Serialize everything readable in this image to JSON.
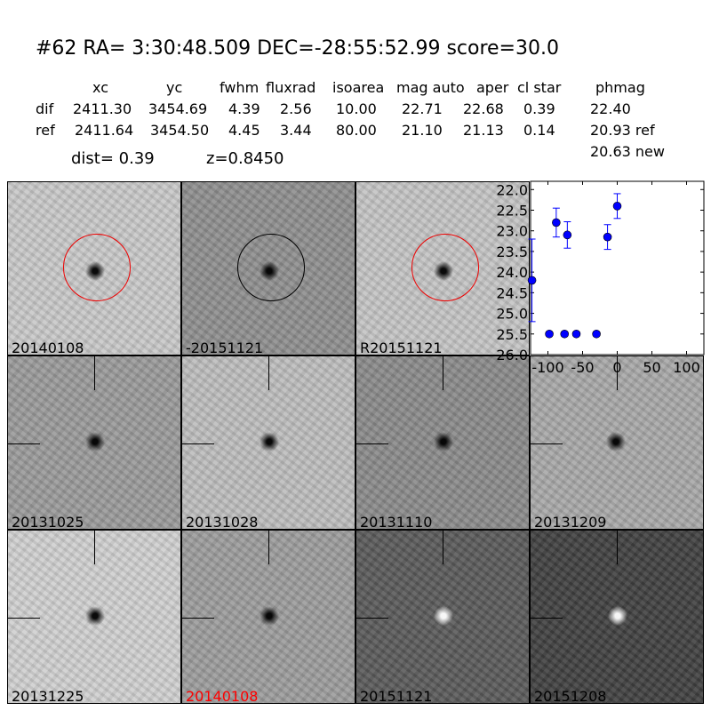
{
  "header": {
    "title": "#62   RA= 3:30:48.509 DEC=-28:55:52.99      score=30.0",
    "columns": [
      "xc",
      "yc",
      "fwhm",
      "fluxrad",
      "isoarea",
      "mag auto",
      "aper",
      "cl star",
      "phmag"
    ],
    "rows": [
      {
        "label": "dif",
        "values": [
          "2411.30",
          "3454.69",
          "4.39",
          "2.56",
          "10.00",
          "22.71",
          "22.68",
          "0.39",
          "22.40"
        ]
      },
      {
        "label": "ref",
        "values": [
          "2411.64",
          "3454.50",
          "4.45",
          "3.44",
          "80.00",
          "21.10",
          "21.13",
          "0.14",
          "20.93 ref"
        ]
      }
    ],
    "extra_phmag": "20.63 new",
    "dist": "dist=  0.39",
    "z": "z=0.8450"
  },
  "panels": [
    {
      "label": "20140108",
      "bg": "#c8c8c8",
      "spot": "dark",
      "circle": "red"
    },
    {
      "label": "-20151121",
      "bg": "#8e8e8e",
      "spot": "dark",
      "circle": "black"
    },
    {
      "label": "R20151121",
      "bg": "#c4c4c4",
      "spot": "dark",
      "circle": "red"
    },
    null,
    {
      "label": "20131025",
      "bg": "#9a9a9a",
      "spot": "dark",
      "cross": true
    },
    {
      "label": "20131028",
      "bg": "#bdbdbd",
      "spot": "dark",
      "cross": true
    },
    {
      "label": "20131110",
      "bg": "#8a8a8a",
      "spot": "dark",
      "cross": true
    },
    {
      "label": "20131209",
      "bg": "#a8a8a8",
      "spot": "dark",
      "cross": true
    },
    {
      "label": "20131225",
      "bg": "#d0d0d0",
      "spot": "dark",
      "cross": true
    },
    {
      "label": "20140108",
      "bg": "#9c9c9c",
      "spot": "dark",
      "cross": true,
      "label_color": "#ff0000"
    },
    {
      "label": "20151121",
      "bg": "#5a5a5a",
      "spot": "light",
      "cross": true
    },
    {
      "label": "20151208",
      "bg": "#404040",
      "spot": "light",
      "cross": true
    }
  ],
  "chart_data": {
    "type": "scatter",
    "xlim": [
      -125,
      125
    ],
    "ylim": [
      26.0,
      21.8
    ],
    "y_inverted": true,
    "xticks": [
      "-100",
      "-50",
      "0",
      "50",
      "100"
    ],
    "xtick_values": [
      -100,
      -50,
      0,
      50,
      100
    ],
    "yticks": [
      "22.0",
      "22.5",
      "23.0",
      "23.5",
      "24.0",
      "24.5",
      "25.0",
      "25.5",
      "26.0"
    ],
    "ytick_values": [
      22,
      22.5,
      23,
      23.5,
      24,
      24.5,
      25,
      25.5,
      26
    ],
    "color": "#0000ff",
    "points": [
      {
        "x": -123,
        "y": 24.2,
        "err": 1.0
      },
      {
        "x": -98,
        "y": 25.5,
        "err": 0.05
      },
      {
        "x": -88,
        "y": 22.8,
        "err": 0.35
      },
      {
        "x": -76,
        "y": 25.5,
        "err": 0.05
      },
      {
        "x": -72,
        "y": 23.1,
        "err": 0.32
      },
      {
        "x": -59,
        "y": 25.5,
        "err": 0.05
      },
      {
        "x": -30,
        "y": 25.5,
        "err": 0.05
      },
      {
        "x": -14,
        "y": 23.15,
        "err": 0.3
      },
      {
        "x": 0,
        "y": 22.4,
        "err": 0.3
      }
    ]
  }
}
